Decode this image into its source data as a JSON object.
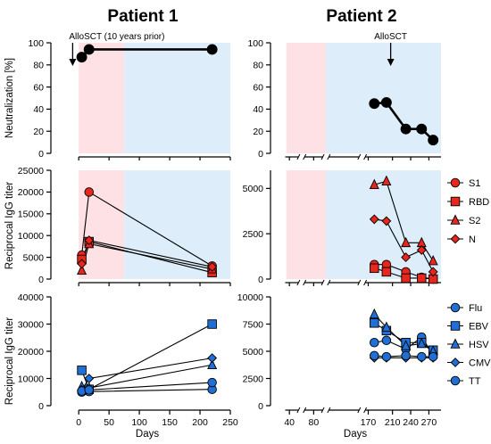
{
  "colors": {
    "pink_band": "#fde1e4",
    "blue_band": "#ddeefa",
    "red": "#e8271c",
    "blue": "#1f6fd6",
    "black": "#000000"
  },
  "titles": {
    "left": "Patient 1",
    "right": "Patient 2"
  },
  "ylabels": {
    "neutralization": "Neutralization [%]",
    "igg_top": "Reciprocal IgG titer",
    "igg_bottom": "Reciprocal IgG titer"
  },
  "xlabels": {
    "left": "Days",
    "right": "Days"
  },
  "annotations": {
    "p1_allosct": "AlloSCT (10 years prior)",
    "p2_allosct": "AlloSCT"
  },
  "chart_data": [
    {
      "id": "p1-neut",
      "type": "line",
      "patient": "Patient 1",
      "ylabel": "Neutralization [%]",
      "ylim": [
        0,
        100
      ],
      "yticks": [
        0,
        20,
        40,
        60,
        80,
        100
      ],
      "xlim": [
        -15,
        250
      ],
      "bands": [
        {
          "from": 0,
          "to": 75,
          "color": "pink"
        },
        {
          "from": 75,
          "to": 250,
          "color": "blue"
        }
      ],
      "series": [
        {
          "marker": "circle",
          "color": "black",
          "x": [
            5,
            17,
            220
          ],
          "y": [
            87,
            94,
            94
          ]
        }
      ],
      "annotation": {
        "label": "AlloSCT (10 years prior)",
        "x": -10
      }
    },
    {
      "id": "p2-neut",
      "type": "line",
      "patient": "Patient 2",
      "ylim": [
        0,
        100
      ],
      "yticks": [
        0,
        20,
        40,
        60,
        80,
        100
      ],
      "xlim": [
        25,
        290
      ],
      "bands": [
        {
          "from": 35,
          "to": 100,
          "color": "pink"
        },
        {
          "from": 100,
          "to": 290,
          "color": "blue"
        }
      ],
      "series": [
        {
          "marker": "circle",
          "color": "black",
          "x": [
            180,
            200,
            232,
            258,
            277
          ],
          "y": [
            45,
            46,
            22,
            22,
            12
          ]
        }
      ],
      "annotation": {
        "label": "AlloSCT",
        "x": 207
      }
    },
    {
      "id": "p1-sars",
      "type": "line",
      "patient": "Patient 1",
      "ylabel": "Reciprocal IgG titer",
      "ylim": [
        0,
        25000
      ],
      "yticks": [
        0,
        5000,
        10000,
        15000,
        20000,
        25000
      ],
      "xlim": [
        -15,
        250
      ],
      "bands": [
        {
          "from": 0,
          "to": 75,
          "color": "pink"
        },
        {
          "from": 75,
          "to": 250,
          "color": "blue"
        }
      ],
      "series": [
        {
          "name": "S1",
          "marker": "circle",
          "color": "red",
          "x": [
            5,
            17,
            220
          ],
          "y": [
            5500,
            20000,
            3000
          ]
        },
        {
          "name": "RBD",
          "marker": "square",
          "color": "red",
          "x": [
            5,
            17,
            220
          ],
          "y": [
            4500,
            8600,
            1500
          ]
        },
        {
          "name": "S2",
          "marker": "triangle",
          "color": "red",
          "x": [
            5,
            17,
            220
          ],
          "y": [
            2000,
            8100,
            2300
          ]
        },
        {
          "name": "N",
          "marker": "diamond",
          "color": "red",
          "x": [
            5,
            17,
            220
          ],
          "y": [
            3500,
            8900,
            2800
          ]
        }
      ]
    },
    {
      "id": "p2-sars",
      "type": "line",
      "patient": "Patient 2",
      "ylim": [
        0,
        6000
      ],
      "yticks": [
        0,
        2500,
        5000
      ],
      "xlim": [
        25,
        290
      ],
      "bands": [
        {
          "from": 35,
          "to": 100,
          "color": "pink"
        },
        {
          "from": 100,
          "to": 290,
          "color": "blue"
        }
      ],
      "series": [
        {
          "name": "S1",
          "marker": "circle",
          "color": "red",
          "x": [
            180,
            200,
            232,
            258,
            277
          ],
          "y": [
            800,
            800,
            400,
            100,
            0
          ]
        },
        {
          "name": "RBD",
          "marker": "square",
          "color": "red",
          "x": [
            180,
            200,
            232,
            258,
            277
          ],
          "y": [
            600,
            400,
            50,
            50,
            0
          ]
        },
        {
          "name": "S2",
          "marker": "triangle",
          "color": "red",
          "x": [
            180,
            200,
            232,
            258,
            277
          ],
          "y": [
            5200,
            5400,
            2000,
            2000,
            1000
          ]
        },
        {
          "name": "N",
          "marker": "diamond",
          "color": "red",
          "x": [
            180,
            200,
            232,
            258,
            277
          ],
          "y": [
            3300,
            3200,
            1200,
            1600,
            400
          ]
        }
      ],
      "legend": {
        "position": "right",
        "entries": [
          "S1",
          "RBD",
          "S2",
          "N"
        ]
      }
    },
    {
      "id": "p1-vir",
      "type": "line",
      "patient": "Patient 1",
      "ylabel": "Reciprocal IgG titer",
      "ylim": [
        0,
        40000
      ],
      "yticks": [
        0,
        10000,
        20000,
        30000,
        40000
      ],
      "xlim": [
        -15,
        250
      ],
      "xticks": [
        0,
        50,
        100,
        150,
        200,
        250
      ],
      "xlabel": "Days",
      "series": [
        {
          "name": "Flu",
          "marker": "circle",
          "color": "blue",
          "x": [
            5,
            17,
            220
          ],
          "y": [
            5000,
            5200,
            6000
          ]
        },
        {
          "name": "EBV",
          "marker": "square",
          "color": "blue",
          "x": [
            5,
            17,
            220
          ],
          "y": [
            13000,
            6000,
            30000
          ]
        },
        {
          "name": "HSV",
          "marker": "triangle",
          "color": "blue",
          "x": [
            5,
            17,
            220
          ],
          "y": [
            7000,
            6500,
            15000
          ]
        },
        {
          "name": "CMV",
          "marker": "diamond",
          "color": "blue",
          "x": [
            5,
            17,
            220
          ],
          "y": [
            5800,
            10000,
            17500
          ]
        },
        {
          "name": "TT",
          "marker": "circle",
          "color": "blue",
          "x": [
            5,
            17,
            220
          ],
          "y": [
            5400,
            5800,
            8500
          ]
        }
      ]
    },
    {
      "id": "p2-vir",
      "type": "line",
      "patient": "Patient 2",
      "ylim": [
        0,
        10000
      ],
      "yticks": [
        0,
        2500,
        5000,
        7500,
        10000
      ],
      "xlim": [
        25,
        290
      ],
      "xlabel": "Days",
      "xticks": [
        {
          "label": "40",
          "x": 40
        },
        {
          "label": "80",
          "x": 80
        },
        {
          "label": "170",
          "x": 170
        },
        {
          "label": "210",
          "x": 210
        },
        {
          "label": "240",
          "x": 240
        },
        {
          "label": "270",
          "x": 270
        }
      ],
      "axis_breaks": [
        60,
        100,
        160
      ],
      "series": [
        {
          "name": "Flu",
          "marker": "circle",
          "color": "blue",
          "x": [
            180,
            200,
            232,
            258,
            277
          ],
          "y": [
            5800,
            6000,
            5200,
            6300,
            4700
          ]
        },
        {
          "name": "EBV",
          "marker": "square",
          "color": "blue",
          "x": [
            180,
            200,
            232,
            258,
            277
          ],
          "y": [
            7600,
            6900,
            5800,
            5800,
            5100
          ]
        },
        {
          "name": "HSV",
          "marker": "triangle",
          "color": "blue",
          "x": [
            180,
            200,
            232,
            258,
            277
          ],
          "y": [
            8400,
            7200,
            5500,
            5700,
            5000
          ]
        },
        {
          "name": "CMV",
          "marker": "diamond",
          "color": "blue",
          "x": [
            180,
            200,
            232,
            258,
            277
          ],
          "y": [
            4400,
            4400,
            4400,
            4400,
            4400
          ]
        },
        {
          "name": "TT",
          "marker": "circle",
          "color": "blue",
          "x": [
            180,
            200,
            232,
            258,
            277
          ],
          "y": [
            4600,
            4500,
            4600,
            4500,
            4500
          ]
        }
      ],
      "legend": {
        "position": "right",
        "entries": [
          "Flu",
          "EBV",
          "HSV",
          "CMV",
          "TT"
        ]
      }
    }
  ]
}
